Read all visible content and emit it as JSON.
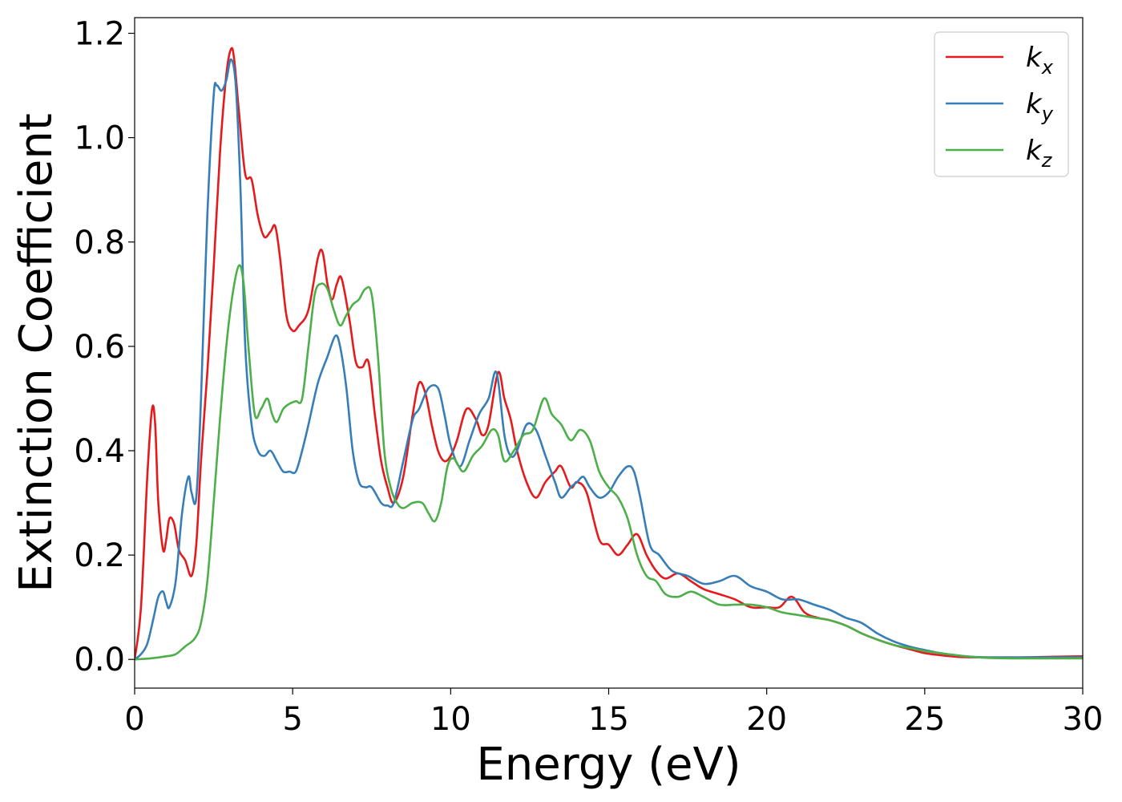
{
  "chart_data": {
    "type": "line",
    "title": "",
    "xlabel": "Energy (eV)",
    "ylabel": "Extinction Coefficient",
    "xlim": [
      0,
      30
    ],
    "ylim": [
      -0.055,
      1.23
    ],
    "xticks": [
      0,
      5,
      10,
      15,
      20,
      25,
      30
    ],
    "xtick_labels": [
      "0",
      "5",
      "10",
      "15",
      "20",
      "25",
      "30"
    ],
    "yticks": [
      0.0,
      0.2,
      0.4,
      0.6,
      0.8,
      1.0,
      1.2
    ],
    "ytick_labels": [
      "0.0",
      "0.2",
      "0.4",
      "0.6",
      "0.8",
      "1.0",
      "1.2"
    ],
    "grid": false,
    "legend_position": "top-right",
    "series": [
      {
        "name": "k_x",
        "label_main": "k",
        "label_sub": "x",
        "color": "#e41a1c",
        "x": [
          0,
          0.2,
          0.4,
          0.55,
          0.65,
          0.75,
          0.9,
          1.0,
          1.1,
          1.25,
          1.4,
          1.6,
          1.8,
          1.95,
          2.1,
          2.3,
          2.5,
          2.7,
          2.9,
          3.05,
          3.15,
          3.3,
          3.5,
          3.7,
          3.9,
          4.1,
          4.3,
          4.45,
          4.6,
          4.8,
          5.0,
          5.2,
          5.5,
          5.8,
          5.95,
          6.1,
          6.25,
          6.4,
          6.55,
          6.8,
          7.0,
          7.2,
          7.4,
          7.6,
          7.8,
          8.0,
          8.2,
          8.5,
          8.8,
          9.0,
          9.2,
          9.4,
          9.6,
          9.8,
          10.0,
          10.2,
          10.5,
          10.8,
          11.0,
          11.2,
          11.5,
          11.7,
          11.9,
          12.1,
          12.4,
          12.7,
          13.0,
          13.3,
          13.5,
          13.8,
          14.0,
          14.3,
          14.7,
          15.0,
          15.3,
          15.6,
          15.9,
          16.2,
          16.5,
          16.8,
          17.2,
          17.6,
          18.0,
          18.5,
          19.0,
          19.5,
          20.0,
          20.4,
          20.8,
          21.2,
          21.6,
          22.0,
          22.5,
          23.0,
          23.5,
          24.0,
          24.5,
          25.0,
          25.5,
          26.0,
          26.5,
          27.0,
          28.0,
          29.0,
          30.0
        ],
        "y": [
          0.0,
          0.1,
          0.35,
          0.48,
          0.45,
          0.3,
          0.21,
          0.23,
          0.27,
          0.26,
          0.21,
          0.19,
          0.16,
          0.22,
          0.38,
          0.55,
          0.75,
          0.97,
          1.12,
          1.17,
          1.15,
          1.05,
          0.93,
          0.92,
          0.85,
          0.81,
          0.82,
          0.83,
          0.77,
          0.66,
          0.63,
          0.64,
          0.67,
          0.77,
          0.78,
          0.72,
          0.69,
          0.72,
          0.73,
          0.65,
          0.57,
          0.56,
          0.57,
          0.47,
          0.38,
          0.33,
          0.3,
          0.35,
          0.47,
          0.53,
          0.51,
          0.45,
          0.4,
          0.38,
          0.39,
          0.42,
          0.48,
          0.46,
          0.43,
          0.45,
          0.55,
          0.5,
          0.46,
          0.4,
          0.34,
          0.31,
          0.34,
          0.36,
          0.37,
          0.33,
          0.34,
          0.32,
          0.23,
          0.22,
          0.2,
          0.22,
          0.24,
          0.2,
          0.17,
          0.155,
          0.165,
          0.15,
          0.135,
          0.125,
          0.115,
          0.1,
          0.1,
          0.1,
          0.12,
          0.09,
          0.08,
          0.075,
          0.065,
          0.05,
          0.038,
          0.028,
          0.02,
          0.012,
          0.008,
          0.005,
          0.004,
          0.004,
          0.004,
          0.005,
          0.006
        ]
      },
      {
        "name": "k_y",
        "label_main": "k",
        "label_sub": "y",
        "color": "#377eb8",
        "x": [
          0,
          0.2,
          0.4,
          0.6,
          0.75,
          0.9,
          1.0,
          1.1,
          1.3,
          1.5,
          1.7,
          1.8,
          1.95,
          2.1,
          2.3,
          2.5,
          2.6,
          2.75,
          2.9,
          3.05,
          3.2,
          3.35,
          3.5,
          3.7,
          3.9,
          4.1,
          4.3,
          4.5,
          4.7,
          4.9,
          5.1,
          5.3,
          5.5,
          5.8,
          6.1,
          6.35,
          6.5,
          6.7,
          6.9,
          7.1,
          7.3,
          7.5,
          7.8,
          8.0,
          8.2,
          8.5,
          8.8,
          9.0,
          9.3,
          9.6,
          9.8,
          10.0,
          10.3,
          10.6,
          10.9,
          11.2,
          11.45,
          11.7,
          11.9,
          12.1,
          12.4,
          12.7,
          13.0,
          13.3,
          13.5,
          13.8,
          14.0,
          14.2,
          14.4,
          14.7,
          15.0,
          15.3,
          15.6,
          15.8,
          16.0,
          16.3,
          16.6,
          17.0,
          17.5,
          18.0,
          18.5,
          19.0,
          19.5,
          20.0,
          20.5,
          21.0,
          21.5,
          22.0,
          22.5,
          23.0,
          23.5,
          24.0,
          24.5,
          25.0,
          25.5,
          26.0,
          26.5,
          27.0,
          28.0,
          29.0,
          30.0
        ],
        "y": [
          0.0,
          0.01,
          0.03,
          0.08,
          0.12,
          0.13,
          0.11,
          0.1,
          0.15,
          0.28,
          0.35,
          0.32,
          0.31,
          0.5,
          0.85,
          1.08,
          1.1,
          1.09,
          1.11,
          1.15,
          1.1,
          0.9,
          0.6,
          0.45,
          0.4,
          0.39,
          0.4,
          0.38,
          0.36,
          0.36,
          0.36,
          0.4,
          0.45,
          0.53,
          0.58,
          0.62,
          0.6,
          0.52,
          0.4,
          0.34,
          0.33,
          0.33,
          0.3,
          0.295,
          0.3,
          0.38,
          0.46,
          0.48,
          0.52,
          0.52,
          0.47,
          0.41,
          0.37,
          0.42,
          0.47,
          0.5,
          0.55,
          0.43,
          0.39,
          0.4,
          0.45,
          0.44,
          0.39,
          0.34,
          0.31,
          0.33,
          0.34,
          0.35,
          0.33,
          0.31,
          0.32,
          0.35,
          0.37,
          0.36,
          0.31,
          0.22,
          0.2,
          0.17,
          0.16,
          0.145,
          0.15,
          0.16,
          0.14,
          0.13,
          0.115,
          0.115,
          0.105,
          0.095,
          0.08,
          0.07,
          0.05,
          0.035,
          0.025,
          0.018,
          0.012,
          0.008,
          0.005,
          0.004,
          0.004,
          0.004,
          0.004
        ]
      },
      {
        "name": "k_z",
        "label_main": "k",
        "label_sub": "z",
        "color": "#4daf4a",
        "x": [
          0,
          0.5,
          1.0,
          1.3,
          1.6,
          1.9,
          2.1,
          2.3,
          2.5,
          2.7,
          2.9,
          3.1,
          3.3,
          3.45,
          3.6,
          3.8,
          4.0,
          4.2,
          4.35,
          4.5,
          4.7,
          4.9,
          5.1,
          5.3,
          5.5,
          5.7,
          5.9,
          6.1,
          6.3,
          6.5,
          6.7,
          6.9,
          7.1,
          7.3,
          7.5,
          7.7,
          7.9,
          8.1,
          8.3,
          8.5,
          8.8,
          9.1,
          9.3,
          9.5,
          9.7,
          9.9,
          10.1,
          10.4,
          10.7,
          11.0,
          11.3,
          11.5,
          11.7,
          12.0,
          12.3,
          12.6,
          12.95,
          13.2,
          13.5,
          13.8,
          14.1,
          14.4,
          14.7,
          15.0,
          15.3,
          15.6,
          15.9,
          16.2,
          16.5,
          16.8,
          17.2,
          17.6,
          18.0,
          18.5,
          19.0,
          19.5,
          20.0,
          20.5,
          21.0,
          21.5,
          22.0,
          22.5,
          23.0,
          23.5,
          24.0,
          24.5,
          25.0,
          25.5,
          26.0,
          26.5,
          27.0,
          28.0,
          29.0,
          30.0
        ],
        "y": [
          0.0,
          0.002,
          0.006,
          0.01,
          0.025,
          0.04,
          0.07,
          0.15,
          0.3,
          0.46,
          0.6,
          0.7,
          0.755,
          0.72,
          0.6,
          0.47,
          0.48,
          0.5,
          0.47,
          0.455,
          0.48,
          0.49,
          0.495,
          0.5,
          0.6,
          0.7,
          0.72,
          0.71,
          0.67,
          0.64,
          0.66,
          0.68,
          0.69,
          0.71,
          0.7,
          0.58,
          0.4,
          0.33,
          0.3,
          0.29,
          0.3,
          0.3,
          0.28,
          0.265,
          0.3,
          0.37,
          0.385,
          0.36,
          0.39,
          0.41,
          0.44,
          0.43,
          0.38,
          0.4,
          0.43,
          0.44,
          0.5,
          0.47,
          0.45,
          0.42,
          0.44,
          0.42,
          0.36,
          0.33,
          0.31,
          0.27,
          0.2,
          0.16,
          0.15,
          0.125,
          0.12,
          0.13,
          0.12,
          0.105,
          0.105,
          0.105,
          0.1,
          0.09,
          0.085,
          0.08,
          0.075,
          0.065,
          0.05,
          0.038,
          0.028,
          0.022,
          0.016,
          0.012,
          0.008,
          0.005,
          0.003,
          0.002,
          0.002,
          0.002
        ]
      }
    ]
  }
}
